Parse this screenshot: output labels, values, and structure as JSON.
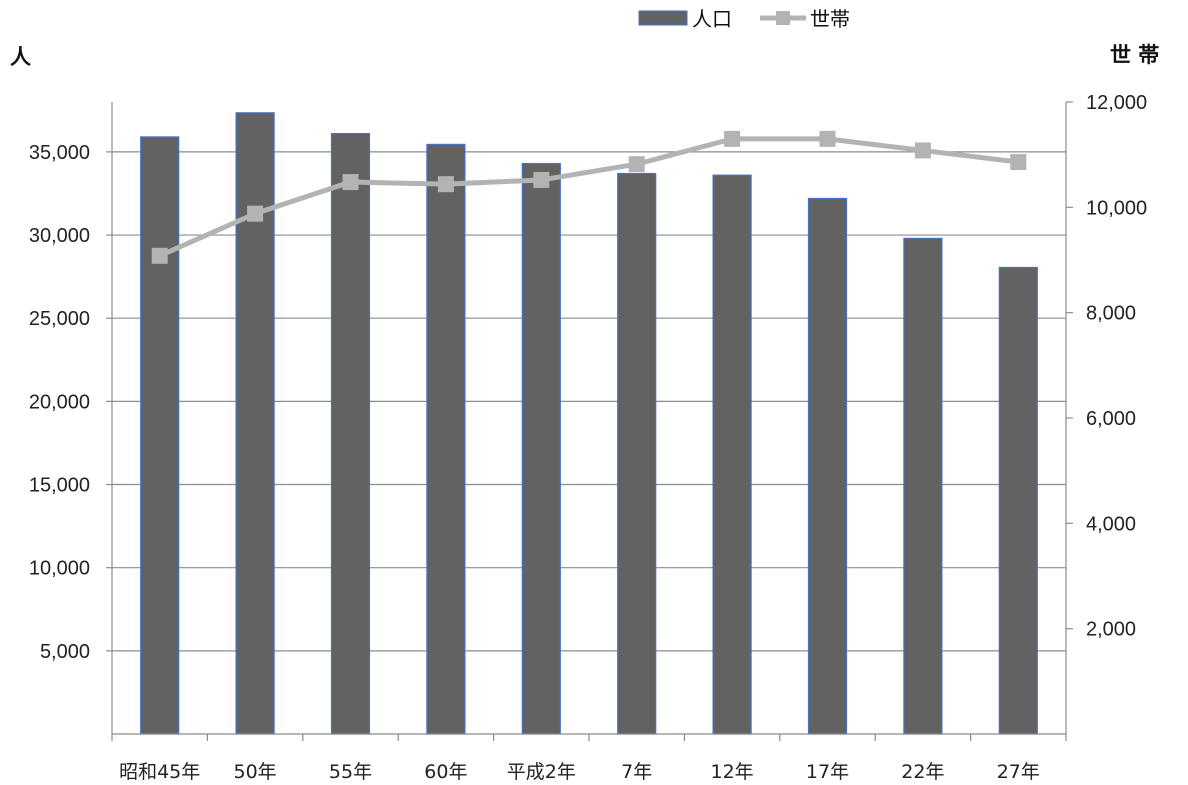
{
  "chart_data": {
    "type": "bar",
    "categories": [
      "昭和45年",
      "50年",
      "55年",
      "60年",
      "平成2年",
      "7年",
      "12年",
      "17年",
      "22年",
      "27年"
    ],
    "series": [
      {
        "name": "人口",
        "type": "bar",
        "axis": "left",
        "color": "#626262",
        "values": [
          35900,
          37350,
          36100,
          35450,
          34300,
          33700,
          33600,
          32200,
          29800,
          28050
        ]
      },
      {
        "name": "世帯",
        "type": "line",
        "axis": "right",
        "color": "#b3b3b3",
        "values": [
          9080,
          9880,
          10480,
          10440,
          10520,
          10820,
          11300,
          11300,
          11080,
          10860
        ]
      }
    ],
    "ylabel": "人",
    "y2label": "世 帯",
    "ylim": [
      0,
      38000
    ],
    "y2lim": [
      0,
      12000
    ],
    "yticks": [
      5000,
      10000,
      15000,
      20000,
      25000,
      30000,
      35000
    ],
    "ytick_labels": [
      "5,000",
      "10,000",
      "15,000",
      "20,000",
      "25,000",
      "30,000",
      "35,000"
    ],
    "y2ticks": [
      2000,
      4000,
      6000,
      8000,
      10000,
      12000
    ],
    "y2tick_labels": [
      "2,000",
      "4,000",
      "6,000",
      "8,000",
      "10,000",
      "12,000"
    ],
    "grid": true,
    "legend_position": "top-right"
  }
}
